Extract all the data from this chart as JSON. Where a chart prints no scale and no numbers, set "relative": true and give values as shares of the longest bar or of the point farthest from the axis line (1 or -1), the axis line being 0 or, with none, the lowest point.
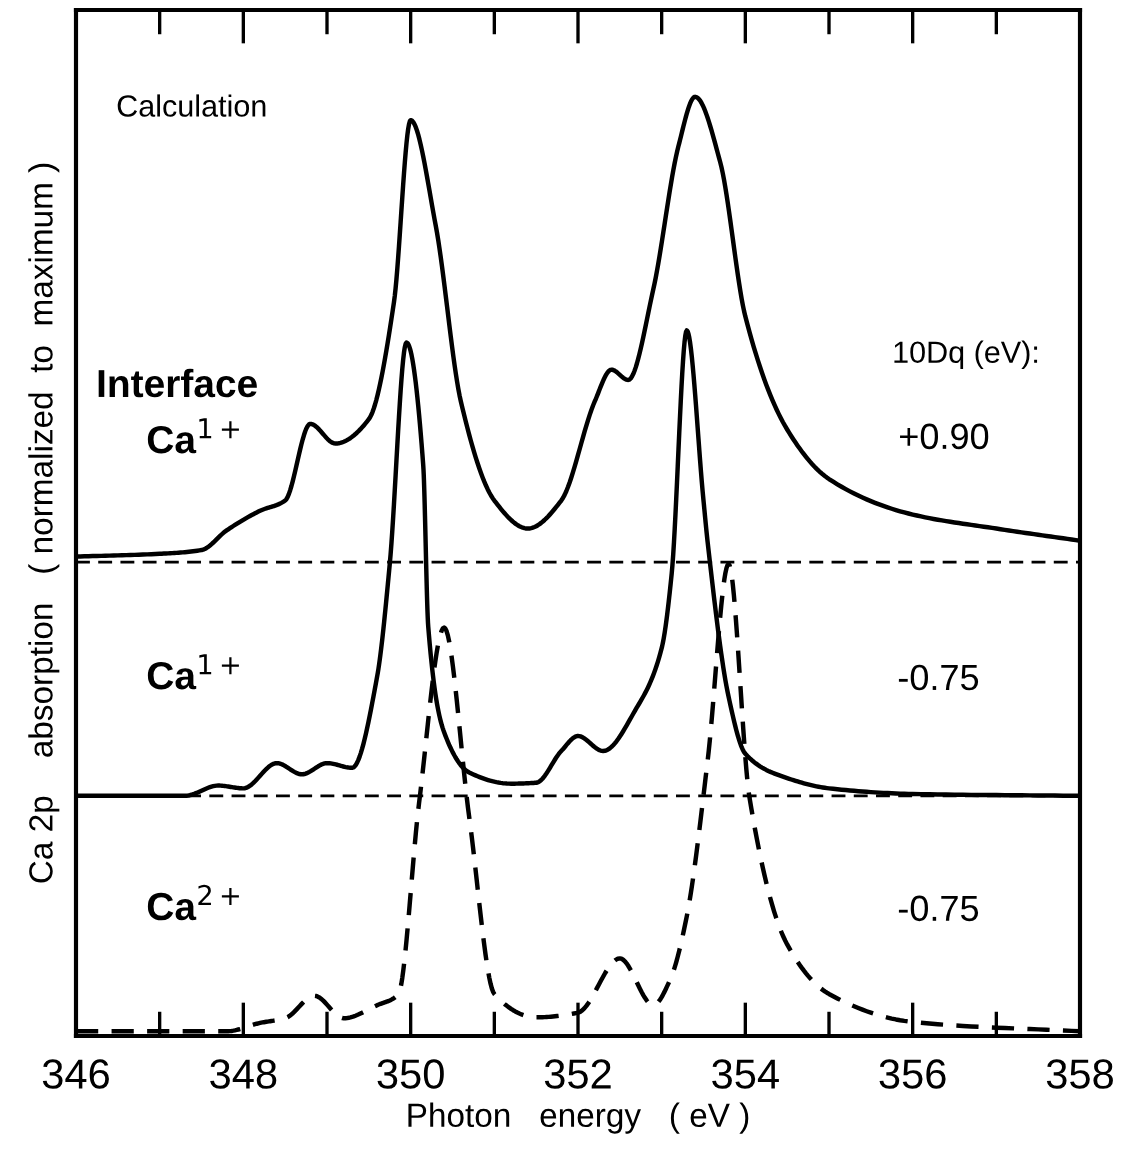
{
  "chart_data": {
    "type": "line",
    "relative": true,
    "xlabel": "Photon   energy   ( eV )",
    "ylabel": "Ca 2p    absorption   ( normalized  to  maximum )",
    "xlim": [
      346,
      358
    ],
    "xticks": [
      346,
      {
        "value": 347,
        "label": null
      },
      348,
      {
        "value": 349,
        "label": null
      },
      350,
      {
        "value": 351,
        "label": null
      },
      352,
      {
        "value": 353,
        "label": null
      },
      354,
      {
        "value": 355,
        "label": null
      },
      356,
      {
        "value": 357,
        "label": null
      },
      358
    ],
    "tick_labels": "x",
    "grid": false,
    "legend": false,
    "marker": "none",
    "annotations": [
      "Calculation",
      "Interface",
      "Ca$^{1+}$",
      "Ca$^{1+}$",
      "Ca$^{2+}$",
      "10Dq (eV):",
      "+0.90",
      "-0.75",
      "-0.75"
    ],
    "ref_lines": [
      {
        "axis": "y",
        "value": 0.502,
        "label": null,
        "color": "#000000",
        "line_style": "dashed"
      },
      {
        "axis": "y",
        "value": 0.252,
        "label": null,
        "color": "#000000",
        "line_style": "dashed"
      }
    ],
    "series": [
      {
        "color": "#000000",
        "line_style": "solid",
        "x": [
          346,
          347,
          347.5,
          347.8,
          348.2,
          348.5,
          348.8,
          349.1,
          349.5,
          349.8,
          350.0,
          350.3,
          350.6,
          351.0,
          351.4,
          351.8,
          352.2,
          352.4,
          352.6,
          352.9,
          353.2,
          353.4,
          353.7,
          354.0,
          354.5,
          355,
          356,
          357,
          358
        ],
        "values": [
          0.508,
          0.511,
          0.515,
          0.536,
          0.557,
          0.568,
          0.65,
          0.629,
          0.655,
          0.78,
          0.975,
          0.862,
          0.674,
          0.568,
          0.538,
          0.568,
          0.674,
          0.708,
          0.697,
          0.794,
          0.947,
          1.0,
          0.93,
          0.765,
          0.644,
          0.591,
          0.553,
          0.538,
          0.525
        ]
      },
      {
        "color": "#000000",
        "line_style": "solid",
        "x": [
          346,
          347.3,
          347.7,
          348.0,
          348.4,
          348.7,
          349.0,
          349.3,
          349.6,
          349.75,
          349.95,
          350.15,
          350.21,
          350.4,
          350.7,
          351.2,
          351.5,
          351.8,
          352.0,
          352.3,
          352.7,
          353.0,
          353.12,
          353.3,
          353.5,
          353.55,
          353.8,
          354.0,
          354.5,
          355,
          356,
          358
        ],
        "values": [
          0.252,
          0.252,
          0.263,
          0.26,
          0.287,
          0.275,
          0.287,
          0.282,
          0.38,
          0.5,
          0.737,
          0.606,
          0.433,
          0.32,
          0.277,
          0.265,
          0.266,
          0.3,
          0.316,
          0.3,
          0.346,
          0.41,
          0.49,
          0.75,
          0.568,
          0.523,
          0.358,
          0.297,
          0.271,
          0.26,
          0.254,
          0.252
        ]
      },
      {
        "color": "#000000",
        "line_style": "dashed",
        "x": [
          346,
          347.8,
          348.2,
          348.5,
          348.85,
          349.2,
          349.6,
          349.85,
          350.1,
          350.4,
          350.7,
          351.0,
          351.5,
          352.0,
          352.5,
          352.9,
          353.1,
          353.3,
          353.55,
          353.8,
          354.05,
          354.5,
          355,
          356,
          358
        ],
        "values": [
          0.0,
          0.0,
          0.009,
          0.014,
          0.038,
          0.014,
          0.028,
          0.039,
          0.244,
          0.432,
          0.229,
          0.04,
          0.015,
          0.02,
          0.078,
          0.028,
          0.055,
          0.123,
          0.29,
          0.5,
          0.25,
          0.093,
          0.04,
          0.01,
          0.0
        ]
      }
    ]
  }
}
